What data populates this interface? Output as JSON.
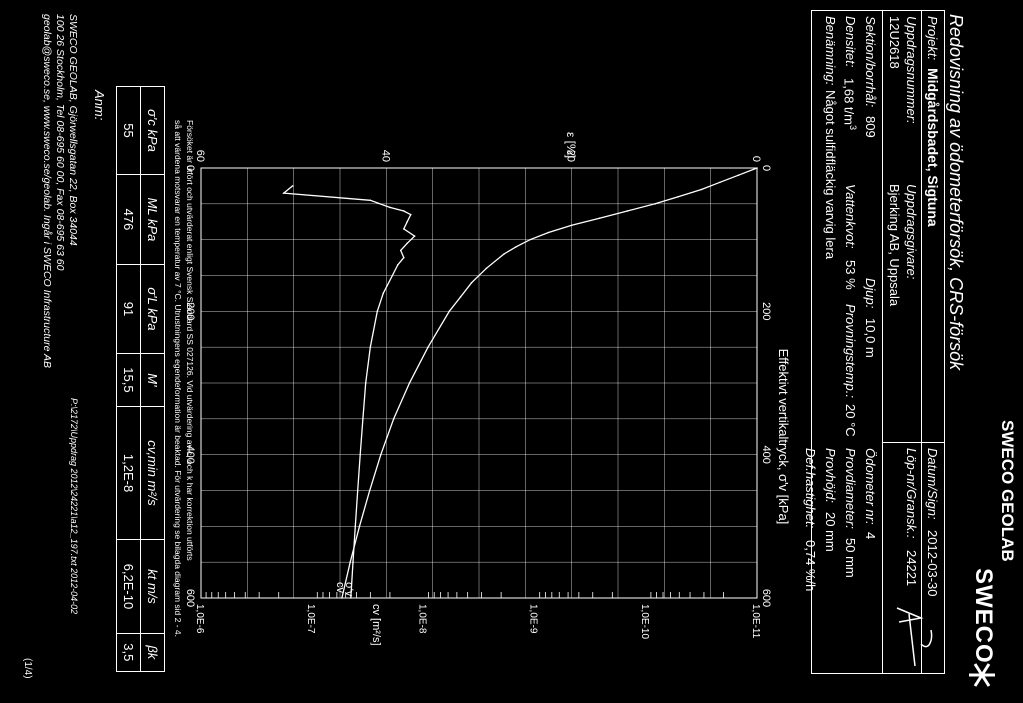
{
  "brand": {
    "header": "SWECO GEOLAB",
    "logo_text": "SWECO",
    "logo_symbol": "sweco-logo-icon"
  },
  "title": "Redovisning av ödometerförsök, CRS-försök",
  "info": {
    "projekt_label": "Projekt:",
    "projekt_value": "Midgårdsbadet, Sigtuna",
    "datum_label": "Datum/Sign:",
    "datum_value": "2012-03-30",
    "uppdragsnummer_label": "Uppdragsnummer:",
    "uppdragsgivare_label": "Uppdragsgivare:",
    "lopnr_label": "Löp-nr/Gransk.:",
    "lopnr_value": "24221",
    "uppdragsnummer_value": "12U2618",
    "uppdragsgivare_value": "Bjerking AB, Uppsala",
    "sektion_label": "Sektion/borrhål:",
    "sektion_value": "809",
    "djup_label": "Djup:",
    "djup_value": "10,0 m",
    "odometer_label": "Ödometer nr:",
    "odometer_value": "4",
    "densitet_label": "Densitet:",
    "densitet_value": "1,68 t/m",
    "densitet_exp": "3",
    "vattenkvot_label": "Vattenkvot:",
    "vattenkvot_value": "53 %",
    "provningstemp_label": "Provningstemp.:",
    "provningstemp_value": "20 °C",
    "provdiameter_label": "Provdiameter:",
    "provdiameter_value": "50 mm",
    "provhojd_label": "Provhöjd:",
    "provhojd_value": "20 mm",
    "benamning_label": "Benämning:",
    "benamning_value": "Något sulfidfläckig varvig lera",
    "def_label": "Def.hastighet:",
    "def_value": "0,74 %/h"
  },
  "note_line1": "Försöket är utfört och utvärderat enligt Svensk Standard SS 027126. Vid utvärdering av c, och k har korrektion utförts",
  "note_line2": "så att värdena motsvarar en temperatur av 7 °C. Utrustningens egendeformation är beaktad. För utvärdering se bilagda diagram sid 2 - 4.",
  "results": {
    "headers": [
      "σ'c kPa",
      "ML kPa",
      "σ'L kPa",
      "M'",
      "cv,min m²/s",
      "kt m/s",
      "βk"
    ],
    "values": [
      "55",
      "476",
      "91",
      "15,5",
      "1,2E-8",
      "6,2E-10",
      "3,5"
    ]
  },
  "anm_label": "Anm:",
  "footer": {
    "line1": "SWECO GEOLAB, Gjörwellsgatan 22, Box 34044",
    "line2": "100 26 Stockholm, Tel 08-695 60 00, Fax 08-695 63 60",
    "line3": "geolab@sweco.se, www.sweco.se/geolab. Ingår i SWECO Infrastructure AB",
    "path": "P:\\2172\\Uppdrag 2012\\24221\\a12_197.txt 2012-04-02",
    "page": "(1/4)"
  },
  "signature": "signature-scribble",
  "chart_data": {
    "type": "line",
    "xlabel": "Effektivt vertikaltryck, σ'v [kPa]",
    "xlim": [
      0,
      600
    ],
    "x_ticks": [
      "0",
      "200",
      "400",
      "600"
    ],
    "left_axis": {
      "label": "ε [%]",
      "ylim": [
        0,
        60
      ],
      "ticks": [
        "0",
        "20",
        "40",
        "60"
      ]
    },
    "right_axis": {
      "label": "cv [m²/s]",
      "scale": "log",
      "ticks": [
        "1,0E-11",
        "1,0E-10",
        "1,0E-9",
        "1,0E-8",
        "1,0E-7",
        "1,0E-6"
      ],
      "exponents": [
        -11,
        -10,
        -9,
        -8,
        -7,
        -6
      ]
    },
    "grid": true,
    "curve_labels": [
      "σ'v",
      "cv"
    ],
    "series": [
      {
        "name": "σ'v",
        "axis": "left",
        "x": [
          0,
          10,
          20,
          30,
          40,
          50,
          60,
          70,
          80,
          90,
          100,
          110,
          120,
          140,
          160,
          180,
          200,
          250,
          300,
          350,
          400,
          450,
          500,
          550,
          600
        ],
        "values": [
          0,
          2,
          4,
          6,
          8.5,
          11,
          14,
          17,
          20,
          22.5,
          24.5,
          26,
          27.3,
          29.2,
          30.8,
          32,
          33.2,
          35.5,
          37.5,
          39.2,
          40.6,
          41.8,
          42.9,
          43.9,
          44.8
        ]
      },
      {
        "name": "cv",
        "axis": "right",
        "x": [
          25,
          35,
          45,
          55,
          60,
          65,
          75,
          85,
          95,
          105,
          115,
          125,
          135,
          150,
          175,
          200,
          250,
          300,
          350,
          400,
          450,
          500,
          550,
          600
        ],
        "values": [
          1.5e-07,
          1.8e-07,
          3e-08,
          2e-08,
          1.5e-08,
          1.3e-08,
          1.4e-08,
          1.5e-08,
          1.2e-08,
          1.4e-08,
          1.6e-08,
          1.5e-08,
          1.7e-08,
          1.9e-08,
          2.3e-08,
          2.6e-08,
          3e-08,
          3.3e-08,
          3.5e-08,
          3.7e-08,
          3.9e-08,
          4.1e-08,
          4.3e-08,
          4.5e-08
        ]
      }
    ]
  }
}
